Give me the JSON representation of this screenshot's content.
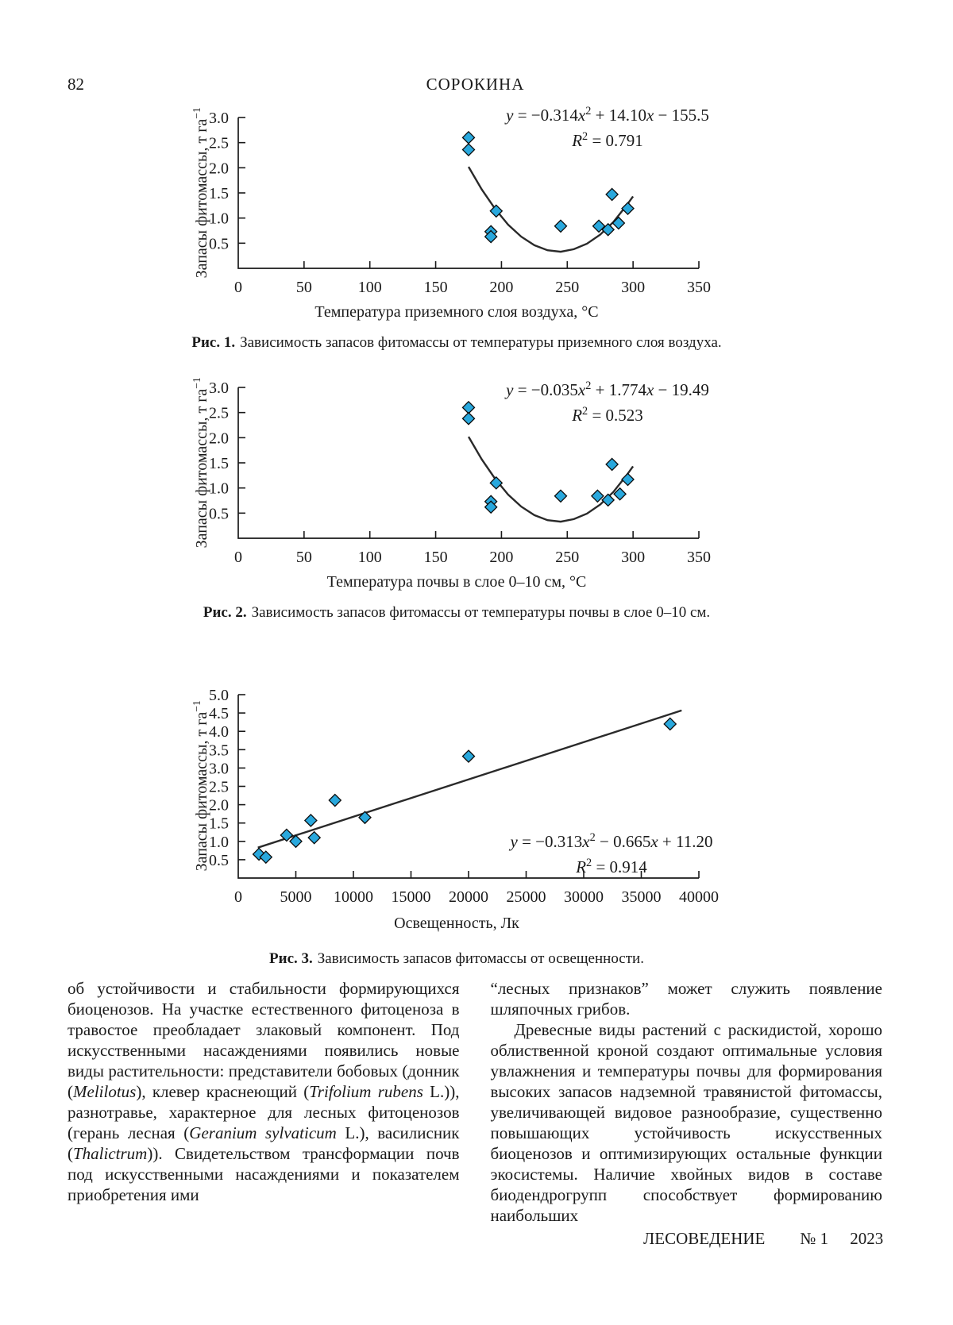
{
  "header": {
    "page_number": "82",
    "running_title": "СОРОКИНА"
  },
  "chart_data": [
    {
      "type": "scatter",
      "xlabel": "Температура приземного слоя воздуха, °С",
      "ylabel": "Запасы фитомассы, т га−1",
      "ylabel_runs": [
        {
          "t": "Запасы фитомассы, т га"
        },
        {
          "t": "−1",
          "sup": 1
        }
      ],
      "xlim": [
        0,
        350
      ],
      "ylim": [
        0,
        3.0
      ],
      "xticks": [
        "0",
        "50",
        "100",
        "150",
        "200",
        "250",
        "300",
        "350"
      ],
      "yticks": [
        "0.5",
        "1.0",
        "1.5",
        "2.0",
        "2.5",
        "3.0"
      ],
      "grid": false,
      "marker": "diamond",
      "marker_color": "#29a8dd",
      "points": [
        [
          175,
          2.6
        ],
        [
          175,
          2.36
        ],
        [
          196,
          1.14
        ],
        [
          192,
          0.73
        ],
        [
          192,
          0.63
        ],
        [
          245,
          0.84
        ],
        [
          274,
          0.84
        ],
        [
          284,
          1.47
        ],
        [
          281,
          0.77
        ],
        [
          289,
          0.9
        ],
        [
          296,
          1.19
        ]
      ],
      "trend_equation": "y = −0.314x^2 + 14.10x − 155.5",
      "r_squared": 0.791,
      "trend_samples": [
        [
          175,
          2.02
        ],
        [
          185,
          1.57
        ],
        [
          195,
          1.19
        ],
        [
          205,
          0.87
        ],
        [
          215,
          0.63
        ],
        [
          225,
          0.46
        ],
        [
          235,
          0.36
        ],
        [
          245,
          0.33
        ],
        [
          255,
          0.38
        ],
        [
          265,
          0.49
        ],
        [
          275,
          0.67
        ],
        [
          285,
          0.92
        ],
        [
          295,
          1.25
        ],
        [
          300,
          1.43
        ]
      ]
    },
    {
      "type": "scatter",
      "xlabel": "Температура почвы в слое 0–10 см, °С",
      "ylabel": "Запасы фитомассы, т га−1",
      "ylabel_runs": [
        {
          "t": "Запасы фитомассы, т га"
        },
        {
          "t": "−1",
          "sup": 1
        }
      ],
      "xlim": [
        0,
        350
      ],
      "ylim": [
        0,
        3.0
      ],
      "xticks": [
        "0",
        "50",
        "100",
        "150",
        "200",
        "250",
        "300",
        "350"
      ],
      "yticks": [
        "0.5",
        "1.0",
        "1.5",
        "2.0",
        "2.5",
        "3.0"
      ],
      "grid": false,
      "marker": "diamond",
      "marker_color": "#29a8dd",
      "points": [
        [
          175,
          2.6
        ],
        [
          175,
          2.38
        ],
        [
          196,
          1.1
        ],
        [
          192,
          0.73
        ],
        [
          192,
          0.62
        ],
        [
          245,
          0.84
        ],
        [
          273,
          0.84
        ],
        [
          284,
          1.47
        ],
        [
          281,
          0.76
        ],
        [
          290,
          0.88
        ],
        [
          296,
          1.17
        ]
      ],
      "trend_equation": "y = −0.035x^2 + 1.774x − 19.49",
      "r_squared": 0.523,
      "trend_samples": [
        [
          175,
          2.02
        ],
        [
          185,
          1.57
        ],
        [
          195,
          1.19
        ],
        [
          205,
          0.87
        ],
        [
          215,
          0.63
        ],
        [
          225,
          0.46
        ],
        [
          235,
          0.36
        ],
        [
          245,
          0.33
        ],
        [
          255,
          0.38
        ],
        [
          265,
          0.49
        ],
        [
          275,
          0.67
        ],
        [
          285,
          0.92
        ],
        [
          295,
          1.25
        ],
        [
          300,
          1.43
        ]
      ]
    },
    {
      "type": "scatter",
      "xlabel": "Освещенность, Лк",
      "ylabel": "Запасы фитомассы, т га−1",
      "ylabel_runs": [
        {
          "t": "Запасы фитомассы, т га"
        },
        {
          "t": "−1",
          "sup": 1
        }
      ],
      "xlim": [
        0,
        40000
      ],
      "ylim": [
        0,
        5.0
      ],
      "xticks": [
        "0",
        "5000",
        "10000",
        "15000",
        "20000",
        "25000",
        "30000",
        "35000",
        "40000"
      ],
      "yticks": [
        "0.5",
        "1.0",
        "1.5",
        "2.0",
        "2.5",
        "3.0",
        "3.5",
        "4.0",
        "4.5",
        "5.0"
      ],
      "grid": false,
      "marker": "diamond",
      "marker_color": "#29a8dd",
      "points": [
        [
          1800,
          0.65
        ],
        [
          2400,
          0.57
        ],
        [
          4200,
          1.17
        ],
        [
          5000,
          1.0
        ],
        [
          6300,
          1.57
        ],
        [
          6600,
          1.1
        ],
        [
          8400,
          2.12
        ],
        [
          11000,
          1.65
        ],
        [
          20000,
          3.32
        ],
        [
          37500,
          4.2
        ]
      ],
      "trend_equation": "y = −0.313x^2 − 0.665x + 11.20",
      "r_squared": 0.914,
      "trend_samples": [
        [
          1700,
          0.83
        ],
        [
          38500,
          4.57
        ]
      ]
    }
  ],
  "figures": [
    {
      "caption_label": "Рис. 1.",
      "caption_text": "Зависимость запасов фитомассы от температуры приземного слоя воздуха.",
      "equation_lines": [
        [
          {
            "t": "y",
            "i": 1
          },
          {
            "t": " = −0.314"
          },
          {
            "t": "x",
            "i": 1
          },
          {
            "t": "2",
            "sup": 1
          },
          {
            "t": " + 14.10"
          },
          {
            "t": "x",
            "i": 1
          },
          {
            "t": " − 155.5"
          }
        ],
        [
          {
            "t": "R",
            "i": 1
          },
          {
            "t": "2",
            "sup": 1
          },
          {
            "t": " = 0.791"
          }
        ]
      ]
    },
    {
      "caption_label": "Рис. 2.",
      "caption_text": "Зависимость запасов фитомассы от температуры почвы в слое 0–10 см.",
      "equation_lines": [
        [
          {
            "t": "y",
            "i": 1
          },
          {
            "t": " = −0.035"
          },
          {
            "t": "x",
            "i": 1
          },
          {
            "t": "2",
            "sup": 1
          },
          {
            "t": " + 1.774"
          },
          {
            "t": "x",
            "i": 1
          },
          {
            "t": " − 19.49"
          }
        ],
        [
          {
            "t": "R",
            "i": 1
          },
          {
            "t": "2",
            "sup": 1
          },
          {
            "t": " = 0.523"
          }
        ]
      ]
    },
    {
      "caption_label": "Рис. 3.",
      "caption_text": "Зависимость запасов фитомассы от освещенности.",
      "equation_lines": [
        [
          {
            "t": "y",
            "i": 1
          },
          {
            "t": " = −0.313"
          },
          {
            "t": "x",
            "i": 1
          },
          {
            "t": "2",
            "sup": 1
          },
          {
            "t": " − 0.665"
          },
          {
            "t": "x",
            "i": 1
          },
          {
            "t": " + 11.20"
          }
        ],
        [
          {
            "t": "R",
            "i": 1
          },
          {
            "t": "2",
            "sup": 1
          },
          {
            "t": " = 0.914"
          }
        ]
      ]
    }
  ],
  "body": {
    "columns": [
      {
        "paragraphs": [
          {
            "indent": false,
            "runs": [
              {
                "t": "об устойчивости и стабильности формирующихся биоценозов. На участке естественного фитоценоза в травостое преобладает злаковый компонент. Под искусственными насаждениями появились новые виды растительности: представители бобовых (донник ("
              },
              {
                "t": "Melilotus",
                "i": 1
              },
              {
                "t": "), клевер краснеющий ("
              },
              {
                "t": "Trifolium rubens",
                "i": 1
              },
              {
                "t": " L.)), разнотравье, характерное для лесных фитоценозов (герань лесная ("
              },
              {
                "t": "Geranium sylvaticum",
                "i": 1
              },
              {
                "t": " L.), василисник ("
              },
              {
                "t": "Thalictrum",
                "i": 1
              },
              {
                "t": ")). Свидетельством трансформации почв под искусственными насаждениями и показателем приобретения ими"
              }
            ]
          }
        ]
      },
      {
        "paragraphs": [
          {
            "indent": false,
            "runs": [
              {
                "t": "“лесных признаков” может служить появление шляпочных грибов."
              }
            ]
          },
          {
            "indent": true,
            "runs": [
              {
                "t": "Древесные виды растений с раскидистой, хорошо облиственной кроной создают оптимальные условия увлажнения и температуры почвы для формирования высоких запасов надземной травянистой фитомассы, увеличивающей видовое разнообразие, существенно повышающих устойчивость искусственных биоценозов и оптимизирующих остальные функции экосистемы. Наличие хвойных видов в составе биодендрогрупп способствует формированию наибольших"
              }
            ]
          }
        ]
      }
    ]
  },
  "footer": {
    "journal": "ЛЕСОВЕДЕНИЕ",
    "issue": "№ 1",
    "year": "2023"
  }
}
